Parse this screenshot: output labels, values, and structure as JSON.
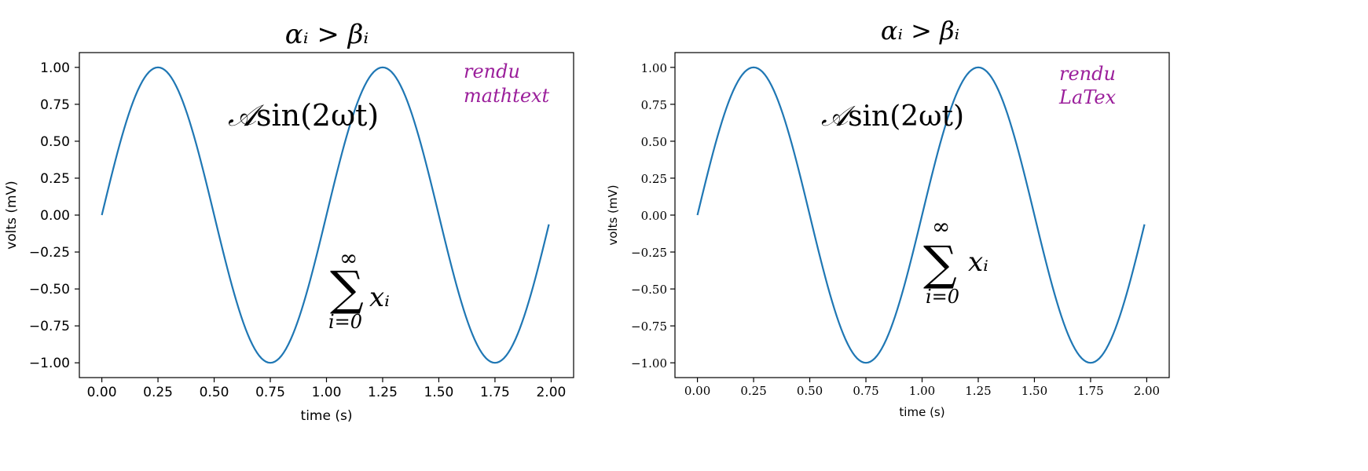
{
  "chart_data": [
    {
      "type": "line",
      "renderer": "mathtext",
      "title": "αᵢ > βᵢ",
      "xlabel": "time (s)",
      "ylabel": "volts (mV)",
      "xlim": [
        -0.1,
        2.1
      ],
      "ylim": [
        -1.1,
        1.1
      ],
      "xticks": [
        "0.00",
        "0.25",
        "0.50",
        "0.75",
        "1.00",
        "1.25",
        "1.50",
        "1.75",
        "2.00"
      ],
      "yticks": [
        "1.00",
        "0.75",
        "0.50",
        "0.25",
        "0.00",
        "−0.25",
        "−0.50",
        "−0.75",
        "−1.00"
      ],
      "series": [
        {
          "function": "sin(2πt)",
          "t_start": 0.0,
          "t_end": 1.99,
          "t_step": 0.01,
          "color": "#1f77b4"
        }
      ],
      "annotations": {
        "formula_prefix": "𝒜",
        "formula_body": "sin(2ωt)",
        "sum_symbol": "∑",
        "sum_upper": "∞",
        "sum_lower": "i=0",
        "sum_term": "xᵢ",
        "note_line1": "rendu",
        "note_line2": "mathtext",
        "note_color": "#9b1f9b"
      }
    },
    {
      "type": "line",
      "renderer": "LaTeX",
      "title": "αᵢ > βᵢ",
      "xlabel": "time (s)",
      "ylabel": "volts (mV)",
      "xlim": [
        -0.1,
        2.1
      ],
      "ylim": [
        -1.1,
        1.1
      ],
      "xticks": [
        "0.00",
        "0.25",
        "0.50",
        "0.75",
        "1.00",
        "1.25",
        "1.50",
        "1.75",
        "2.00"
      ],
      "yticks": [
        "1.00",
        "0.75",
        "0.50",
        "0.25",
        "0.00",
        "−0.25",
        "−0.50",
        "−0.75",
        "−1.00"
      ],
      "series": [
        {
          "function": "sin(2πt)",
          "t_start": 0.0,
          "t_end": 1.99,
          "t_step": 0.01,
          "color": "#1f77b4"
        }
      ],
      "annotations": {
        "formula_prefix": "𝒜",
        "formula_body": "sin(2ωt)",
        "sum_symbol": "∑",
        "sum_upper": "∞",
        "sum_lower": "i=0",
        "sum_term": "xᵢ",
        "note_line1": "rendu",
        "note_line2": "LaTex",
        "note_color": "#9b1f9b"
      }
    }
  ]
}
